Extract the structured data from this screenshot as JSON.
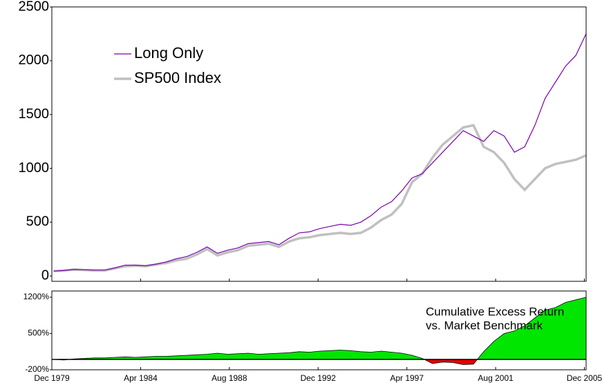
{
  "chart_data": [
    {
      "type": "line",
      "x": [
        "1980-01",
        "1980-07",
        "1981-01",
        "1981-07",
        "1982-01",
        "1982-07",
        "1983-01",
        "1983-07",
        "1984-01",
        "1984-07",
        "1985-01",
        "1985-07",
        "1986-01",
        "1986-07",
        "1987-01",
        "1987-07",
        "1988-01",
        "1988-07",
        "1989-01",
        "1989-07",
        "1990-01",
        "1990-07",
        "1991-01",
        "1991-07",
        "1992-01",
        "1992-07",
        "1993-01",
        "1993-07",
        "1994-01",
        "1994-07",
        "1995-01",
        "1995-07",
        "1996-01",
        "1996-07",
        "1997-01",
        "1997-07",
        "1998-01",
        "1998-07",
        "1999-01",
        "1999-07",
        "2000-01",
        "2000-07",
        "2001-01",
        "2001-07",
        "2002-01",
        "2002-07",
        "2003-01",
        "2003-07",
        "2004-01",
        "2004-07",
        "2005-01",
        "2005-07",
        "2006-01"
      ],
      "series": [
        {
          "name": "Long Only",
          "color": "#7a00a8",
          "width": 1.2,
          "values": [
            45,
            50,
            60,
            58,
            55,
            55,
            75,
            100,
            100,
            95,
            110,
            130,
            160,
            180,
            220,
            270,
            210,
            240,
            260,
            300,
            310,
            320,
            290,
            350,
            400,
            410,
            440,
            460,
            480,
            470,
            500,
            560,
            640,
            690,
            790,
            910,
            950,
            1050,
            1150,
            1250,
            1350,
            1300,
            1250,
            1350,
            1300,
            1150,
            1200,
            1400,
            1650,
            1800,
            1950,
            2050,
            2250
          ]
        },
        {
          "name": "SP500 Index",
          "color": "#c0c0c0",
          "width": 3.5,
          "values": [
            45,
            50,
            60,
            55,
            50,
            50,
            70,
            90,
            95,
            90,
            105,
            120,
            145,
            160,
            200,
            250,
            190,
            220,
            240,
            280,
            290,
            300,
            270,
            320,
            350,
            360,
            380,
            390,
            400,
            390,
            400,
            450,
            520,
            570,
            670,
            870,
            950,
            1100,
            1220,
            1300,
            1380,
            1400,
            1200,
            1150,
            1050,
            900,
            800,
            900,
            1000,
            1040,
            1060,
            1080,
            1120
          ]
        }
      ],
      "xlim": [
        "1979-12",
        "2006-01"
      ],
      "ylim": [
        -50,
        2500
      ],
      "yticks": [
        0,
        500,
        1000,
        1500,
        2000,
        2500
      ],
      "legend": "upper left"
    },
    {
      "type": "area",
      "x": [
        "1980-01",
        "1980-07",
        "1981-01",
        "1981-07",
        "1982-01",
        "1982-07",
        "1983-01",
        "1983-07",
        "1984-01",
        "1984-07",
        "1985-01",
        "1985-07",
        "1986-01",
        "1986-07",
        "1987-01",
        "1987-07",
        "1988-01",
        "1988-07",
        "1989-01",
        "1989-07",
        "1990-01",
        "1990-07",
        "1991-01",
        "1991-07",
        "1992-01",
        "1992-07",
        "1993-01",
        "1993-07",
        "1994-01",
        "1994-07",
        "1995-01",
        "1995-07",
        "1996-01",
        "1996-07",
        "1997-01",
        "1997-07",
        "1998-01",
        "1998-07",
        "1999-01",
        "1999-07",
        "2000-01",
        "2000-07",
        "2001-01",
        "2001-07",
        "2002-01",
        "2002-07",
        "2003-01",
        "2003-07",
        "2004-01",
        "2004-07",
        "2005-01",
        "2005-07",
        "2006-01"
      ],
      "values": [
        0,
        -10,
        10,
        20,
        30,
        30,
        40,
        50,
        40,
        50,
        60,
        60,
        70,
        80,
        90,
        100,
        120,
        100,
        110,
        120,
        100,
        110,
        120,
        130,
        150,
        140,
        160,
        170,
        180,
        170,
        150,
        140,
        160,
        140,
        120,
        80,
        20,
        -80,
        -50,
        -60,
        -100,
        -90,
        150,
        350,
        500,
        550,
        650,
        800,
        950,
        1000,
        1100,
        1150,
        1200
      ],
      "positive_color": "#00e600",
      "negative_color": "#e60000",
      "annotation": [
        "Cumulative Excess Return",
        "vs. Market Benchmark"
      ],
      "xlim": [
        "1979-12",
        "2006-01"
      ],
      "xticks": [
        {
          "value": "1979-12",
          "label": "Dec 1979"
        },
        {
          "value": "1984-04",
          "label": "Apr 1984"
        },
        {
          "value": "1988-08",
          "label": "Aug 1988"
        },
        {
          "value": "1992-12",
          "label": "Dec 1992"
        },
        {
          "value": "1997-04",
          "label": "Apr 1997"
        },
        {
          "value": "2001-08",
          "label": "Aug 2001"
        },
        {
          "value": "2005-12",
          "label": "Dec 2005"
        }
      ],
      "ylim": [
        -200,
        1320
      ],
      "yticks": [
        {
          "value": -200,
          "label": "-200%"
        },
        {
          "value": 500,
          "label": "500%"
        },
        {
          "value": 1200,
          "label": "1200%"
        }
      ]
    }
  ]
}
